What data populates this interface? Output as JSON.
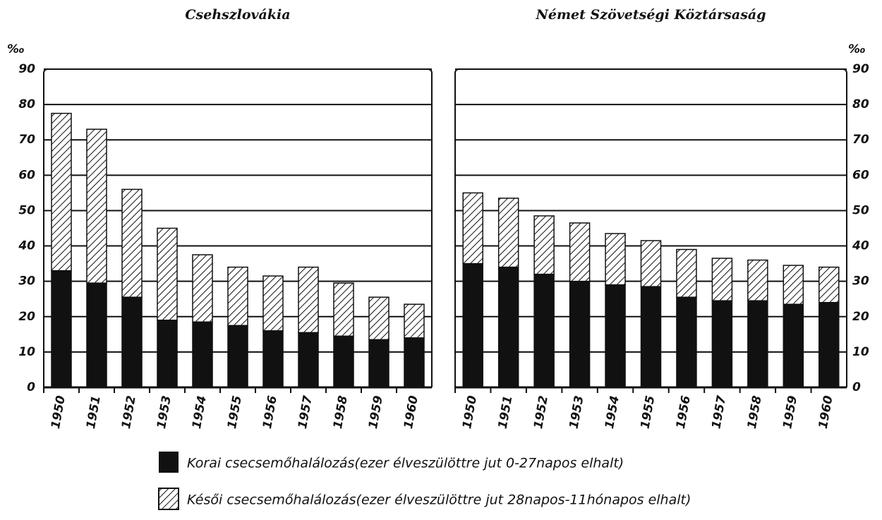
{
  "chart_data": [
    {
      "type": "bar",
      "stacked": true,
      "title": "Csehszlovákia",
      "y_unit": "‰",
      "axis_side": "left",
      "categories": [
        "1950",
        "1951",
        "1952",
        "1953",
        "1954",
        "1955",
        "1956",
        "1957",
        "1958",
        "1959",
        "1960"
      ],
      "series": [
        {
          "name": "Korai csecsemőhalálozás(ezer élveszülöttre jut 0-27napos elhalt)",
          "color": "#111111",
          "pattern": "solid",
          "values": [
            33,
            29.5,
            25.5,
            19,
            18.5,
            17.5,
            16,
            15.5,
            14.5,
            13.5,
            14
          ]
        },
        {
          "name": "Késői csecsemőhalálozás(ezer élveszülöttre jut 28napos-11hónapos elhalt)",
          "color": "#111111",
          "pattern": "hatch",
          "values": [
            44.5,
            43.5,
            30.5,
            26,
            19,
            16.5,
            15.5,
            18.5,
            15,
            12,
            9.5
          ]
        }
      ],
      "ylim": [
        0,
        90
      ],
      "yticks": [
        0,
        10,
        20,
        30,
        40,
        50,
        60,
        70,
        80,
        90
      ],
      "grid": true
    },
    {
      "type": "bar",
      "stacked": true,
      "title": "Német Szövetségi Köztársaság",
      "y_unit": "‰",
      "axis_side": "right",
      "categories": [
        "1950",
        "1951",
        "1952",
        "1953",
        "1954",
        "1955",
        "1956",
        "1957",
        "1958",
        "1959",
        "1960"
      ],
      "series": [
        {
          "color": "#111111",
          "pattern": "solid",
          "values": [
            35,
            34,
            32,
            30,
            29,
            28.5,
            25.5,
            24.5,
            24.5,
            23.5,
            24
          ]
        },
        {
          "color": "#111111",
          "pattern": "hatch",
          "values": [
            20,
            19.5,
            16.5,
            16.5,
            14.5,
            13,
            13.5,
            12,
            11.5,
            11,
            10
          ]
        }
      ],
      "ylim": [
        0,
        90
      ],
      "yticks": [
        0,
        10,
        20,
        30,
        40,
        50,
        60,
        70,
        80,
        90
      ],
      "grid": true
    }
  ]
}
